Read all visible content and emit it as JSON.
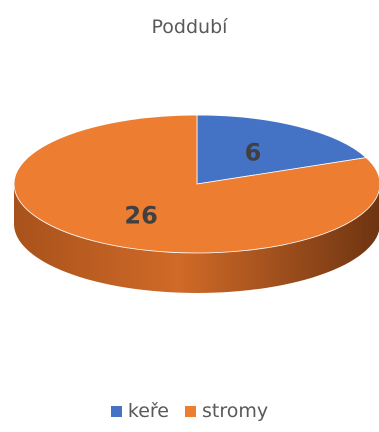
{
  "chart_data": {
    "type": "pie",
    "title": "Poddubí",
    "categories": [
      "keře",
      "stromy"
    ],
    "values": [
      6,
      26
    ],
    "colors": [
      "#4472c4",
      "#ed7d31"
    ],
    "legend_position": "bottom",
    "style": "3d"
  }
}
